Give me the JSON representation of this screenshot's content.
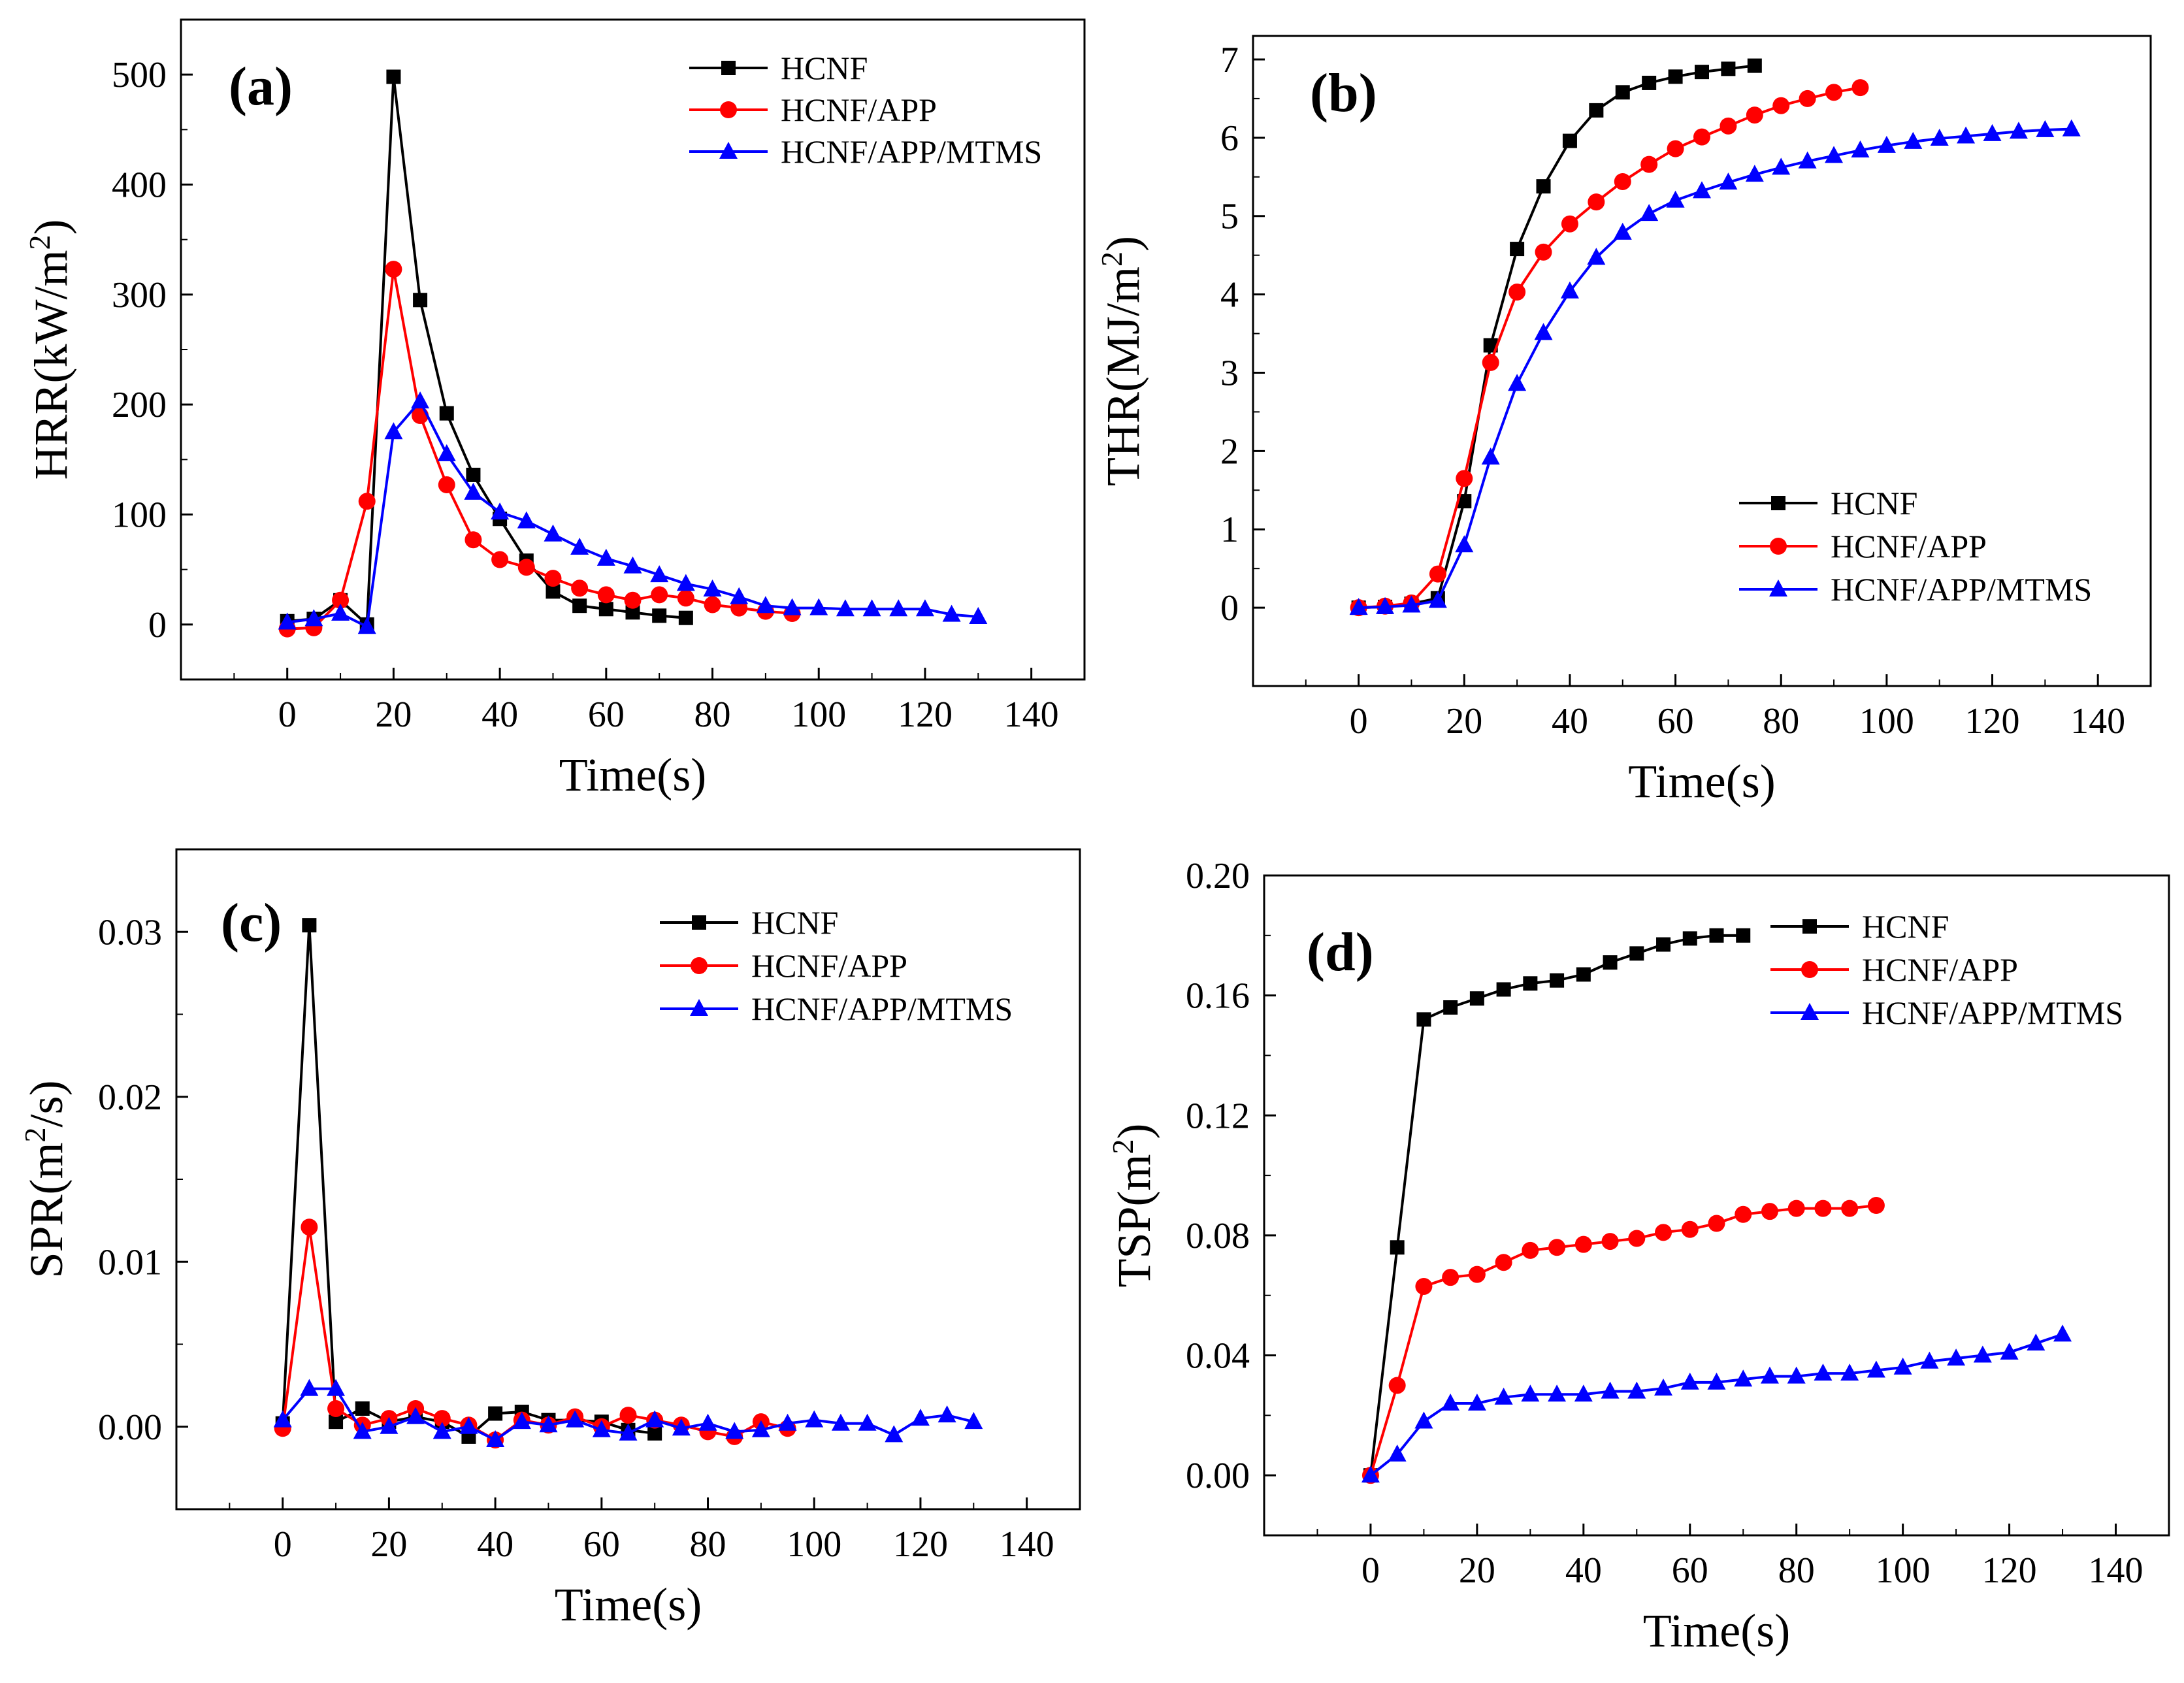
{
  "colors": {
    "HCNF": "#000000",
    "HCNF/APP": "#ff0000",
    "HCNF/APP/MTMS": "#0000ff"
  },
  "chart_data": [
    {
      "type": "line",
      "panel_label": "(a)",
      "xlabel": "Time(s)",
      "ylabel": "HRR(kW/m2)",
      "ylabel_parts": {
        "base": "HRR(kW/m",
        "sup": "2",
        "tail": ")"
      },
      "xlim": [
        -20,
        150
      ],
      "ylim": [
        -50,
        550
      ],
      "xticks": [
        0,
        20,
        40,
        60,
        80,
        100,
        120,
        140
      ],
      "xtick_labels": [
        "0",
        "20",
        "40",
        "60",
        "80",
        "100",
        "120",
        "140"
      ],
      "yticks": [
        0,
        100,
        200,
        300,
        400,
        500
      ],
      "ytick_labels": [
        "0",
        "100",
        "200",
        "300",
        "400",
        "500"
      ],
      "legend_position": "top-right",
      "series": [
        {
          "name": "HCNF",
          "marker": "square",
          "x": [
            0,
            5,
            10,
            15,
            20,
            25,
            30,
            35,
            40,
            45,
            50,
            55,
            60,
            65,
            70,
            75
          ],
          "y": [
            3,
            5,
            22,
            0,
            498,
            295,
            192,
            136,
            96,
            58,
            30,
            17,
            14,
            11,
            8,
            6
          ]
        },
        {
          "name": "HCNF/APP",
          "marker": "circle",
          "x": [
            0,
            5,
            10,
            15,
            20,
            25,
            30,
            35,
            40,
            45,
            50,
            55,
            60,
            65,
            70,
            75,
            80,
            85,
            90,
            95
          ],
          "y": [
            -4,
            -3,
            22,
            112,
            323,
            190,
            127,
            77,
            59,
            52,
            42,
            33,
            27,
            22,
            27,
            24,
            18,
            15,
            12,
            10
          ]
        },
        {
          "name": "HCNF/APP/MTMS",
          "marker": "triangle",
          "x": [
            0,
            5,
            10,
            15,
            20,
            25,
            30,
            35,
            40,
            45,
            50,
            55,
            60,
            65,
            70,
            75,
            80,
            85,
            90,
            95,
            100,
            105,
            110,
            115,
            120,
            125,
            130
          ],
          "y": [
            2,
            5,
            10,
            -2,
            175,
            203,
            155,
            120,
            102,
            94,
            82,
            70,
            60,
            53,
            45,
            37,
            32,
            25,
            17,
            15,
            15,
            14,
            14,
            14,
            14,
            9,
            7
          ]
        }
      ]
    },
    {
      "type": "line",
      "panel_label": "(b)",
      "xlabel": "Time(s)",
      "ylabel": "THR(MJ/m2)",
      "ylabel_parts": {
        "base": "THR(MJ/m",
        "sup": "2",
        "tail": ")"
      },
      "xlim": [
        -20,
        150
      ],
      "ylim": [
        -1,
        7.3
      ],
      "xticks": [
        0,
        20,
        40,
        60,
        80,
        100,
        120,
        140
      ],
      "xtick_labels": [
        "0",
        "20",
        "40",
        "60",
        "80",
        "100",
        "120",
        "140"
      ],
      "yticks": [
        0,
        1,
        2,
        3,
        4,
        5,
        6,
        7
      ],
      "ytick_labels": [
        "0",
        "1",
        "2",
        "3",
        "4",
        "5",
        "6",
        "7"
      ],
      "legend_position": "bottom-right",
      "series": [
        {
          "name": "HCNF",
          "marker": "square",
          "x": [
            0,
            5,
            10,
            15,
            20,
            25,
            30,
            35,
            40,
            45,
            50,
            55,
            60,
            65,
            70,
            75
          ],
          "y": [
            0,
            0.01,
            0.05,
            0.12,
            1.36,
            3.35,
            4.58,
            5.38,
            5.96,
            6.35,
            6.58,
            6.7,
            6.78,
            6.84,
            6.88,
            6.92
          ]
        },
        {
          "name": "HCNF/APP",
          "marker": "circle",
          "x": [
            0,
            5,
            10,
            15,
            20,
            25,
            30,
            35,
            40,
            45,
            50,
            55,
            60,
            65,
            70,
            75,
            80,
            85,
            90,
            95
          ],
          "y": [
            0,
            0.02,
            0.06,
            0.43,
            1.65,
            3.13,
            4.03,
            4.54,
            4.9,
            5.18,
            5.44,
            5.66,
            5.86,
            6.01,
            6.15,
            6.29,
            6.41,
            6.5,
            6.58,
            6.64
          ]
        },
        {
          "name": "HCNF/APP/MTMS",
          "marker": "triangle",
          "x": [
            0,
            5,
            10,
            15,
            20,
            25,
            30,
            35,
            40,
            45,
            50,
            55,
            60,
            65,
            70,
            75,
            80,
            85,
            90,
            95,
            100,
            105,
            110,
            115,
            120,
            125,
            130,
            135
          ],
          "y": [
            0,
            0.01,
            0.03,
            0.09,
            0.8,
            1.92,
            2.86,
            3.51,
            4.04,
            4.47,
            4.79,
            5.03,
            5.2,
            5.32,
            5.43,
            5.53,
            5.62,
            5.7,
            5.77,
            5.84,
            5.9,
            5.95,
            5.99,
            6.02,
            6.05,
            6.08,
            6.1,
            6.11
          ]
        }
      ]
    },
    {
      "type": "line",
      "panel_label": "(c)",
      "xlabel": "Time(s)",
      "ylabel": "SPR(m2/s)",
      "ylabel_parts": {
        "base": "SPR(m",
        "sup": "2",
        "tail": "/s)"
      },
      "xlim": [
        -20,
        150
      ],
      "ylim": [
        -0.005,
        0.035
      ],
      "xticks": [
        0,
        20,
        40,
        60,
        80,
        100,
        120,
        140
      ],
      "xtick_labels": [
        "0",
        "20",
        "40",
        "60",
        "80",
        "100",
        "120",
        "140"
      ],
      "yticks": [
        0,
        0.01,
        0.02,
        0.03
      ],
      "ytick_labels": [
        "0.00",
        "0.01",
        "0.02",
        "0.03"
      ],
      "legend_position": "top-right",
      "series": [
        {
          "name": "HCNF",
          "marker": "square",
          "x": [
            0,
            5,
            10,
            15,
            20,
            25,
            30,
            35,
            40,
            45,
            50,
            55,
            60,
            65,
            70
          ],
          "y": [
            0.0002,
            0.0304,
            0.0003,
            0.0011,
            0.0003,
            0.0006,
            0.0003,
            -0.0006,
            0.0008,
            0.0009,
            0.0004,
            0.0004,
            0.0003,
            -0.0002,
            -0.0004
          ]
        },
        {
          "name": "HCNF/APP",
          "marker": "circle",
          "x": [
            0,
            5,
            10,
            15,
            20,
            25,
            30,
            35,
            40,
            45,
            50,
            55,
            60,
            65,
            70,
            75,
            80,
            85,
            90,
            95
          ],
          "y": [
            -0.0001,
            0.0121,
            0.0011,
            0.0001,
            0.0005,
            0.0011,
            0.0005,
            0.0001,
            -0.0008,
            0.0004,
            0.0001,
            0.0006,
            0.0,
            0.0007,
            0.0004,
            0.0001,
            -0.0003,
            -0.0006,
            0.0003,
            -0.0001
          ]
        },
        {
          "name": "HCNF/APP/MTMS",
          "marker": "triangle",
          "x": [
            0,
            5,
            10,
            15,
            20,
            25,
            30,
            35,
            40,
            45,
            50,
            55,
            60,
            65,
            70,
            75,
            80,
            85,
            90,
            95,
            100,
            105,
            110,
            115,
            120,
            125,
            130
          ],
          "y": [
            0.0004,
            0.0023,
            0.0023,
            -0.0003,
            0.0,
            0.0006,
            -0.0003,
            0.0,
            -0.0008,
            0.0003,
            0.0001,
            0.0004,
            -0.0002,
            -0.0004,
            0.0004,
            -0.0001,
            0.0002,
            -0.0003,
            -0.0002,
            0.0002,
            0.0004,
            0.0002,
            0.0002,
            -0.0005,
            0.0005,
            0.0007,
            0.0003
          ]
        }
      ]
    },
    {
      "type": "line",
      "panel_label": "(d)",
      "xlabel": "Time(s)",
      "ylabel": "TSP(m2)",
      "ylabel_parts": {
        "base": "TSP(m",
        "sup": "2",
        "tail": ")"
      },
      "xlim": [
        -20,
        150
      ],
      "ylim": [
        -0.02,
        0.2
      ],
      "xticks": [
        0,
        20,
        40,
        60,
        80,
        100,
        120,
        140
      ],
      "xtick_labels": [
        "0",
        "20",
        "40",
        "60",
        "80",
        "100",
        "120",
        "140"
      ],
      "yticks": [
        0,
        0.04,
        0.08,
        0.12,
        0.16,
        0.2
      ],
      "ytick_labels": [
        "0.00",
        "0.04",
        "0.08",
        "0.12",
        "0.16",
        "0.20"
      ],
      "legend_position": "top-right",
      "series": [
        {
          "name": "HCNF",
          "marker": "square",
          "x": [
            0,
            5,
            10,
            15,
            20,
            25,
            30,
            35,
            40,
            45,
            50,
            55,
            60,
            65,
            70
          ],
          "y": [
            0,
            0.076,
            0.152,
            0.156,
            0.159,
            0.162,
            0.164,
            0.165,
            0.167,
            0.171,
            0.174,
            0.177,
            0.179,
            0.18,
            0.18
          ]
        },
        {
          "name": "HCNF/APP",
          "marker": "circle",
          "x": [
            0,
            5,
            10,
            15,
            20,
            25,
            30,
            35,
            40,
            45,
            50,
            55,
            60,
            65,
            70,
            75,
            80,
            85,
            90,
            95
          ],
          "y": [
            0,
            0.03,
            0.063,
            0.066,
            0.067,
            0.071,
            0.075,
            0.076,
            0.077,
            0.078,
            0.079,
            0.081,
            0.082,
            0.084,
            0.087,
            0.088,
            0.089,
            0.089,
            0.089,
            0.09
          ]
        },
        {
          "name": "HCNF/APP/MTMS",
          "marker": "triangle",
          "x": [
            0,
            5,
            10,
            15,
            20,
            25,
            30,
            35,
            40,
            45,
            50,
            55,
            60,
            65,
            70,
            75,
            80,
            85,
            90,
            95,
            100,
            105,
            110,
            115,
            120,
            125,
            130
          ],
          "y": [
            0,
            0.007,
            0.018,
            0.024,
            0.024,
            0.026,
            0.027,
            0.027,
            0.027,
            0.028,
            0.028,
            0.029,
            0.031,
            0.031,
            0.032,
            0.033,
            0.033,
            0.034,
            0.034,
            0.035,
            0.036,
            0.038,
            0.039,
            0.04,
            0.041,
            0.044,
            0.047
          ]
        }
      ]
    }
  ]
}
